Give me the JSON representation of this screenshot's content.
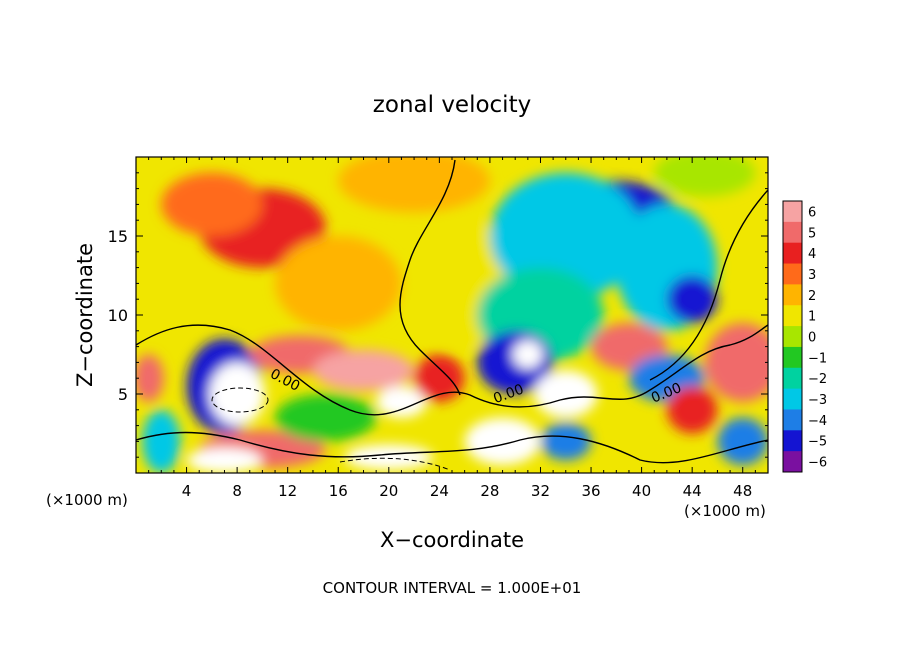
{
  "chart_data": {
    "type": "heatmap",
    "title": "zonal velocity",
    "xlabel": "X−coordinate",
    "ylabel": "Z−coordinate",
    "x_unit_label_left": "(×1000 m)",
    "x_unit_label_right": "(×1000 m)",
    "footer": "CONTOUR INTERVAL = 1.000E+01",
    "xlim": [
      0,
      50
    ],
    "ylim": [
      0,
      20
    ],
    "x_ticks": [
      4,
      8,
      12,
      16,
      20,
      24,
      28,
      32,
      36,
      40,
      44,
      48
    ],
    "y_ticks": [
      5,
      10,
      15
    ],
    "colorbar": {
      "ticks": [
        6,
        5,
        4,
        3,
        2,
        1,
        0,
        -1,
        -2,
        -3,
        -4,
        -5,
        -6
      ],
      "colors": [
        "#f6a3a3",
        "#f06a6a",
        "#e82020",
        "#ff6a1a",
        "#ffb400",
        "#f0e600",
        "#a8e600",
        "#22c822",
        "#00d2a0",
        "#00c8e6",
        "#1e7ee6",
        "#1414d2",
        "#7a10a0"
      ]
    },
    "contour_labels": [
      "0.00",
      "0.00",
      "0.00"
    ],
    "blobs": [
      {
        "x": 10,
        "z": 15.5,
        "value": 3.8,
        "sx": 5,
        "sz": 2.5
      },
      {
        "x": 6,
        "z": 17,
        "value": 2.8,
        "sx": 4,
        "sz": 2
      },
      {
        "x": 22,
        "z": 18.5,
        "value": 2,
        "sx": 6,
        "sz": 2
      },
      {
        "x": 16,
        "z": 12,
        "value": 1.5,
        "sx": 5,
        "sz": 3
      },
      {
        "x": 26,
        "z": 12,
        "value": 0.5,
        "sx": 4,
        "sz": 4
      },
      {
        "x": 38,
        "z": 16,
        "value": -5.5,
        "sx": 5,
        "sz": 2.5
      },
      {
        "x": 34,
        "z": 15,
        "value": -3.5,
        "sx": 6,
        "sz": 4
      },
      {
        "x": 42,
        "z": 13,
        "value": -3,
        "sx": 4,
        "sz": 4
      },
      {
        "x": 44,
        "z": 11,
        "value": -5,
        "sx": 2,
        "sz": 1.5
      },
      {
        "x": 32,
        "z": 10,
        "value": -2,
        "sx": 5,
        "sz": 3
      },
      {
        "x": 30,
        "z": 7,
        "value": -5,
        "sx": 3,
        "sz": 2
      },
      {
        "x": 31,
        "z": 7.5,
        "value": 6,
        "sx": 1.2,
        "sz": 0.9
      },
      {
        "x": 7,
        "z": 5.5,
        "value": -5,
        "sx": 3,
        "sz": 3
      },
      {
        "x": 8,
        "z": 5,
        "value": 6,
        "sx": 2.2,
        "sz": 2
      },
      {
        "x": 13,
        "z": 7.5,
        "value": 5,
        "sx": 4,
        "sz": 1.2
      },
      {
        "x": 18,
        "z": 6.5,
        "value": 5.5,
        "sx": 4,
        "sz": 1.3
      },
      {
        "x": 21,
        "z": 4.5,
        "value": 6,
        "sx": 2,
        "sz": 1
      },
      {
        "x": 24,
        "z": 6,
        "value": 4,
        "sx": 2,
        "sz": 1.5
      },
      {
        "x": 29,
        "z": 2,
        "value": 6,
        "sx": 3,
        "sz": 1.5
      },
      {
        "x": 34,
        "z": 5,
        "value": 6,
        "sx": 2.5,
        "sz": 1.5
      },
      {
        "x": 34,
        "z": 2,
        "value": -4,
        "sx": 2,
        "sz": 1.2
      },
      {
        "x": 39,
        "z": 8,
        "value": 5,
        "sx": 3,
        "sz": 1.5
      },
      {
        "x": 42,
        "z": 6,
        "value": -4,
        "sx": 3,
        "sz": 1.5
      },
      {
        "x": 44,
        "z": 4,
        "value": 4,
        "sx": 2,
        "sz": 1.5
      },
      {
        "x": 48,
        "z": 7,
        "value": 5,
        "sx": 3,
        "sz": 2.5
      },
      {
        "x": 48,
        "z": 2,
        "value": -4,
        "sx": 2,
        "sz": 1.5
      },
      {
        "x": 10,
        "z": 1.5,
        "value": 4.5,
        "sx": 5,
        "sz": 1.2
      },
      {
        "x": 7,
        "z": 0.8,
        "value": 6,
        "sx": 3,
        "sz": 0.8
      },
      {
        "x": 20,
        "z": 1,
        "value": 6,
        "sx": 3.5,
        "sz": 0.8
      },
      {
        "x": 2,
        "z": 2,
        "value": -3,
        "sx": 1.5,
        "sz": 2
      },
      {
        "x": 1,
        "z": 6,
        "value": 5,
        "sx": 1.2,
        "sz": 1.5
      },
      {
        "x": 15,
        "z": 3.5,
        "value": -1.5,
        "sx": 4,
        "sz": 1.5
      },
      {
        "x": 45,
        "z": 19,
        "value": 0,
        "sx": 4,
        "sz": 1.5
      }
    ],
    "background_value": 0.8
  }
}
